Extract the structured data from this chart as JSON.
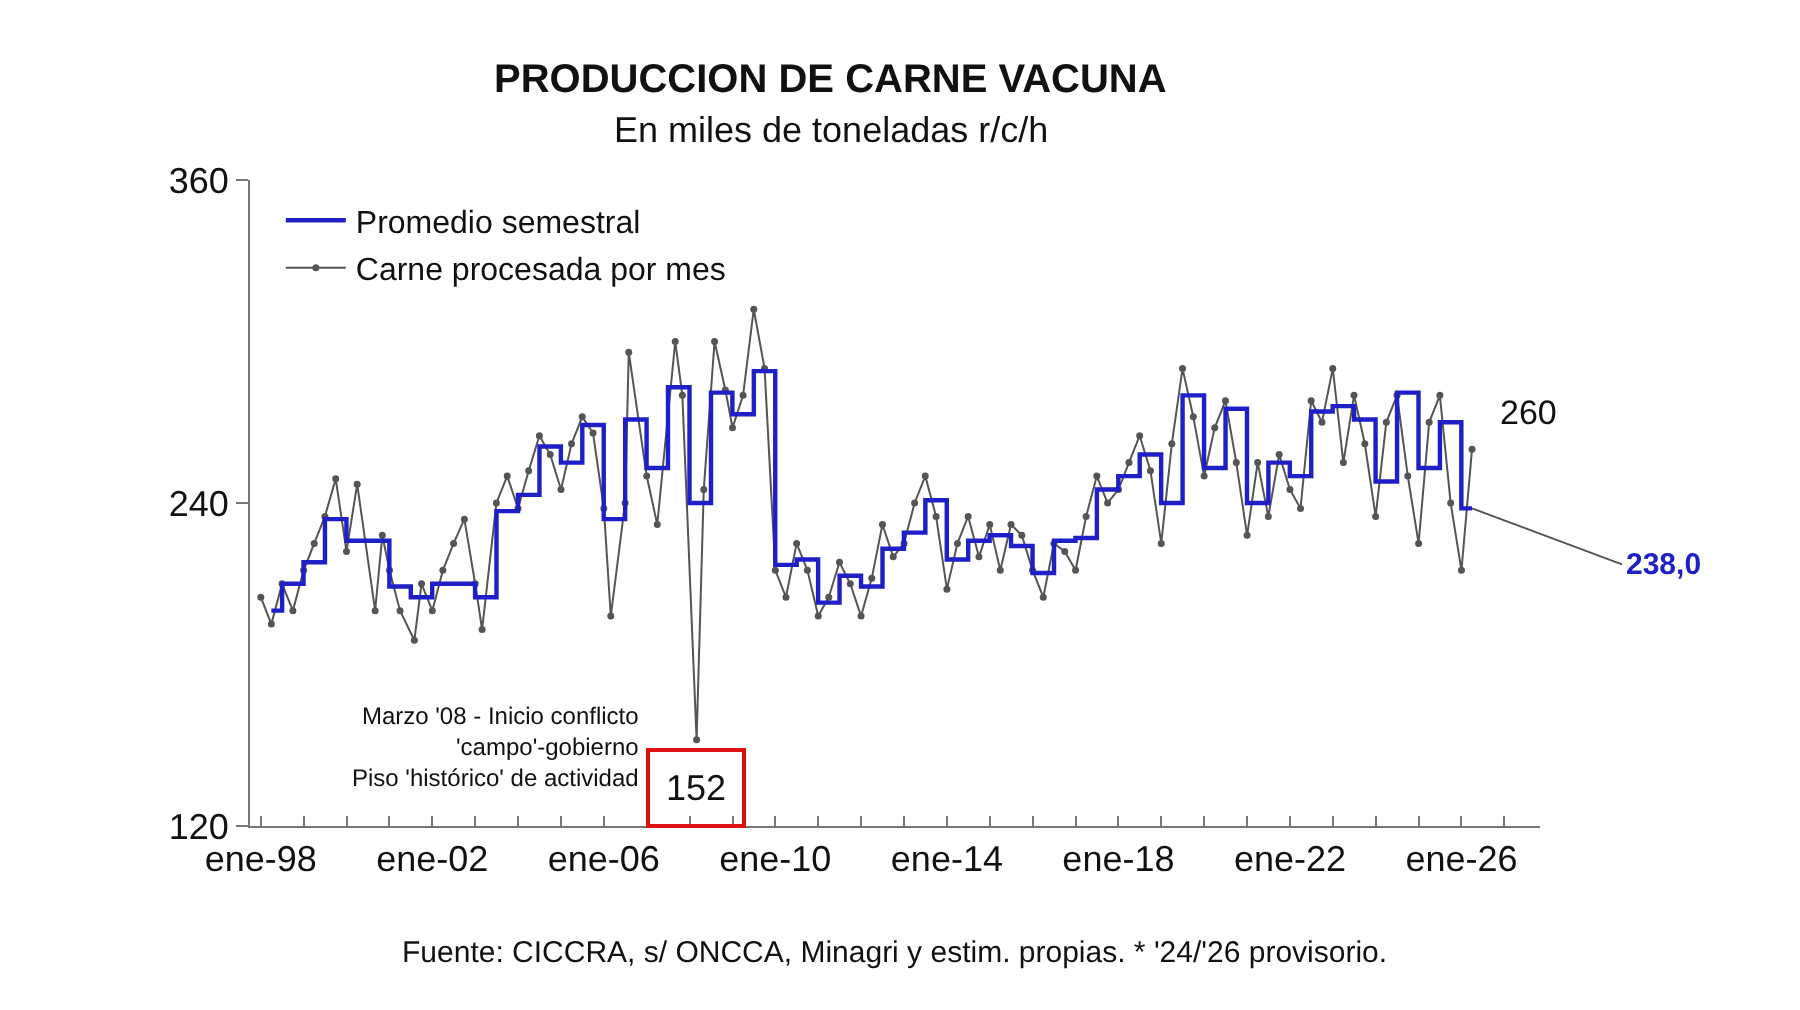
{
  "chart_data": {
    "type": "line",
    "title": "PRODUCCION DE CARNE VACUNA",
    "subtitle": "En miles de toneladas r/c/h",
    "x": [
      "1998-01",
      "1998-04",
      "1998-07",
      "1998-10",
      "1999-01",
      "1999-04",
      "1999-07",
      "1999-10",
      "2000-01",
      "2000-04",
      "2000-09",
      "2000-11",
      "2001-01",
      "2001-04",
      "2001-08",
      "2001-10",
      "2002-01",
      "2002-04",
      "2002-07",
      "2002-10",
      "2003-01",
      "2003-03",
      "2003-07",
      "2003-10",
      "2004-01",
      "2004-04",
      "2004-07",
      "2004-10",
      "2005-01",
      "2005-04",
      "2005-07",
      "2005-10",
      "2006-01",
      "2006-03",
      "2006-07",
      "2006-08",
      "2007-01",
      "2007-04",
      "2007-09",
      "2007-11",
      "2008-03",
      "2008-05",
      "2008-08",
      "2008-11",
      "2009-01",
      "2009-04",
      "2009-07",
      "2009-10",
      "2010-01",
      "2010-04",
      "2010-07",
      "2010-10",
      "2011-01",
      "2011-04",
      "2011-07",
      "2011-10",
      "2012-01",
      "2012-04",
      "2012-07",
      "2012-10",
      "2013-01",
      "2013-04",
      "2013-07",
      "2013-10",
      "2014-01",
      "2014-04",
      "2014-07",
      "2014-10",
      "2015-01",
      "2015-04",
      "2015-07",
      "2015-10",
      "2016-01",
      "2016-04",
      "2016-07",
      "2016-10",
      "2017-01",
      "2017-04",
      "2017-07",
      "2017-10",
      "2018-01",
      "2018-04",
      "2018-07",
      "2018-10",
      "2019-01",
      "2019-04",
      "2019-07",
      "2019-10",
      "2020-01",
      "2020-04",
      "2020-07",
      "2020-10",
      "2021-01",
      "2021-04",
      "2021-07",
      "2021-10",
      "2022-01",
      "2022-04",
      "2022-07",
      "2022-10",
      "2023-01",
      "2023-04",
      "2023-07",
      "2023-10",
      "2024-01",
      "2024-04",
      "2024-07",
      "2024-10",
      "2025-01",
      "2025-04",
      "2025-07",
      "2025-10",
      "2026-01",
      "2026-04"
    ],
    "ylim": [
      120,
      360
    ],
    "yticks": [
      120,
      240,
      360
    ],
    "xlim": [
      "1997-10",
      "2027-11"
    ],
    "xticks": [
      {
        "value": "1998-01",
        "label": "ene-98"
      },
      {
        "value": "1999-01",
        "label": null
      },
      {
        "value": "2000-01",
        "label": null
      },
      {
        "value": "2001-01",
        "label": null
      },
      {
        "value": "2002-01",
        "label": "ene-02"
      },
      {
        "value": "2003-01",
        "label": null
      },
      {
        "value": "2004-01",
        "label": null
      },
      {
        "value": "2005-01",
        "label": null
      },
      {
        "value": "2006-01",
        "label": "ene-06"
      },
      {
        "value": "2007-01",
        "label": null
      },
      {
        "value": "2008-01",
        "label": null
      },
      {
        "value": "2009-01",
        "label": null
      },
      {
        "value": "2010-01",
        "label": "ene-10"
      },
      {
        "value": "2011-01",
        "label": null
      },
      {
        "value": "2012-01",
        "label": null
      },
      {
        "value": "2013-01",
        "label": null
      },
      {
        "value": "2014-01",
        "label": "ene-14"
      },
      {
        "value": "2015-01",
        "label": null
      },
      {
        "value": "2016-01",
        "label": null
      },
      {
        "value": "2017-01",
        "label": null
      },
      {
        "value": "2018-01",
        "label": "ene-18"
      },
      {
        "value": "2019-01",
        "label": null
      },
      {
        "value": "2020-01",
        "label": null
      },
      {
        "value": "2021-01",
        "label": null
      },
      {
        "value": "2022-01",
        "label": "ene-22"
      },
      {
        "value": "2023-01",
        "label": null
      },
      {
        "value": "2024-01",
        "label": null
      },
      {
        "value": "2025-01",
        "label": null
      },
      {
        "value": "2026-01",
        "label": "ene-26"
      },
      {
        "value": "2027-01",
        "label": null
      }
    ],
    "grid": false,
    "legend": "top left",
    "series": [
      {
        "name": "Promedio semestral",
        "type": "step",
        "color": "#1f1fc8",
        "x": [
          "1998-04",
          "1998-10",
          "1999-04",
          "1999-10",
          "2000-04",
          "2000-10",
          "2001-04",
          "2001-10",
          "2002-04",
          "2002-10",
          "2003-04",
          "2003-10",
          "2004-04",
          "2004-10",
          "2005-04",
          "2005-10",
          "2006-04",
          "2006-10",
          "2007-04",
          "2007-10",
          "2008-04",
          "2008-10",
          "2009-04",
          "2009-10",
          "2010-04",
          "2010-10",
          "2011-04",
          "2011-10",
          "2012-04",
          "2012-10",
          "2013-04",
          "2013-10",
          "2014-04",
          "2014-10",
          "2015-04",
          "2015-10",
          "2016-04",
          "2016-10",
          "2017-04",
          "2017-10",
          "2018-04",
          "2018-10",
          "2019-04",
          "2019-10",
          "2020-04",
          "2020-10",
          "2021-04",
          "2021-10",
          "2022-04",
          "2022-10",
          "2023-04",
          "2023-10",
          "2024-04",
          "2024-10",
          "2025-04",
          "2025-10",
          "2026-04"
        ],
        "values": [
          200,
          210,
          218,
          234,
          226,
          226,
          209,
          205,
          210,
          210,
          205,
          237,
          243,
          261,
          255,
          269,
          234,
          271,
          253,
          283,
          240,
          281,
          273,
          289,
          217,
          219,
          203,
          213,
          209,
          223,
          229,
          241,
          219,
          226,
          228,
          224,
          214,
          226,
          227,
          245,
          250,
          258,
          240,
          280,
          253,
          275,
          240,
          255,
          250,
          274,
          276,
          271,
          248,
          281,
          253,
          270,
          238
        ]
      },
      {
        "name": "Carne procesada por mes",
        "type": "line",
        "color": "#555555",
        "marker": "circle",
        "values": [
          205,
          195,
          210,
          200,
          215,
          225,
          235,
          249,
          222,
          247,
          200,
          228,
          215,
          200,
          189,
          210,
          200,
          215,
          225,
          234,
          210,
          193,
          240,
          250,
          238,
          252,
          265,
          258,
          245,
          262,
          272,
          266,
          238,
          198,
          240,
          296,
          250,
          232,
          300,
          280,
          152,
          245,
          300,
          282,
          268,
          280,
          312,
          290,
          215,
          205,
          225,
          215,
          198,
          205,
          218,
          210,
          198,
          212,
          232,
          220,
          225,
          240,
          250,
          235,
          208,
          225,
          235,
          220,
          232,
          215,
          232,
          228,
          215,
          205,
          225,
          222,
          215,
          235,
          250,
          240,
          245,
          255,
          265,
          252,
          225,
          262,
          290,
          272,
          250,
          268,
          278,
          255,
          228,
          255,
          235,
          258,
          245,
          238,
          278,
          270,
          290,
          255,
          280,
          262,
          235,
          270,
          280,
          250,
          225,
          270,
          280,
          240,
          215,
          260
        ]
      }
    ],
    "annotations": [
      {
        "text": "152",
        "x": "2008-03",
        "y": 152
      },
      {
        "text": "Marzo '08 - Inicio conflicto\n'campo'-gobierno\nPiso 'histórico' de actividad",
        "x": "2008-03",
        "y": 152
      },
      {
        "text": "260",
        "x": "2026-04",
        "y": 260
      },
      {
        "text": "238,0",
        "x": "2026-04",
        "y": 238
      },
      "Fuente: CICCRA, s/ ONCCA, Minagri y estim. propias. * '24/'26 provisorio."
    ]
  }
}
